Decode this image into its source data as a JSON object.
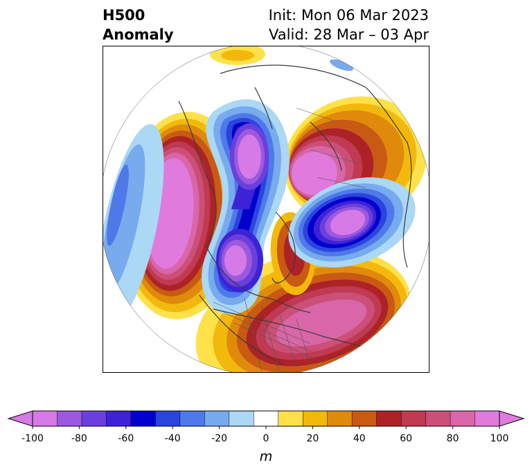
{
  "title": {
    "left_line1": "H500",
    "left_line2": "Anomaly",
    "right_line1": "Init: Mon 06 Mar 2023",
    "right_line2": "Valid: 28 Mar – 03 Apr"
  },
  "colorbar": {
    "ticks": [
      "-100",
      "-80",
      "-60",
      "-40",
      "-20",
      "0",
      "20",
      "40",
      "60",
      "80",
      "100"
    ],
    "unit": "m",
    "extend": "both",
    "colors": [
      "#d57ae6",
      "#9b59e0",
      "#6a3fdc",
      "#3d22d6",
      "#0000cd",
      "#2b44de",
      "#4f79e8",
      "#78aaee",
      "#aad8f5",
      "#ffffff",
      "#ffe14a",
      "#f2b90c",
      "#e08a0c",
      "#c85a14",
      "#ad2226",
      "#bf3a52",
      "#cc4f78",
      "#d866a8",
      "#e07add"
    ]
  },
  "map": {
    "projection": "north-polar-stereographic",
    "field": "500 hPa geopotential height anomaly",
    "features": [
      "coastlines",
      "country-borders",
      "state-borders"
    ]
  }
}
